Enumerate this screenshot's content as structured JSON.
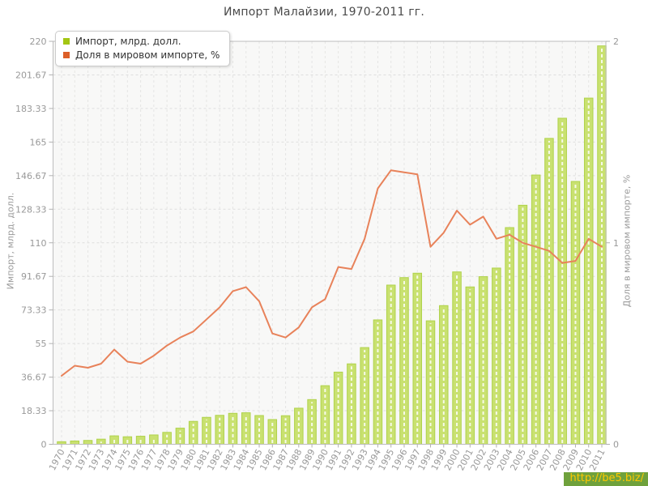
{
  "title": "Импорт Малайзии, 1970-2011 гг.",
  "watermark": "http://be5.biz/",
  "legend": {
    "items": [
      {
        "label": "Импорт, млрд. долл.",
        "color": "#a3c613"
      },
      {
        "label": "Доля в мировом импорте, %",
        "color": "#dc5f28"
      }
    ]
  },
  "colors": {
    "bar_fill": "#c9e170",
    "bar_edge": "#afd24a",
    "bar_stripe": "#ffffff",
    "line": "#e8825a",
    "plot_bg": "#f8f8f7",
    "grid": "#dedede",
    "axis": "#b0b0b0",
    "tick_text": "#999999",
    "title_text": "#4a4a4a",
    "watermark_bg": "#6fa13c",
    "watermark_text": "#ffc800"
  },
  "chart_data": {
    "type": "bar",
    "title": "Импорт Малайзии, 1970-2011 гг.",
    "grid": true,
    "legend_position": "top-left",
    "categories": [
      "1970",
      "1971",
      "1972",
      "1973",
      "1974",
      "1975",
      "1976",
      "1977",
      "1978",
      "1979",
      "1980",
      "1981",
      "1982",
      "1983",
      "1984",
      "1985",
      "1986",
      "1987",
      "1988",
      "1989",
      "1990",
      "1991",
      "1992",
      "1993",
      "1994",
      "1995",
      "1996",
      "1997",
      "1998",
      "1999",
      "2000",
      "2001",
      "2002",
      "2003",
      "2004",
      "2005",
      "2006",
      "2007",
      "2008",
      "2009",
      "2010",
      "2011"
    ],
    "series": [
      {
        "name": "Импорт, млрд. долл.",
        "type": "bar",
        "axis": "left",
        "color": "#c9e170",
        "edge_color": "#afd24a",
        "values": [
          1.4,
          1.8,
          2.1,
          2.8,
          4.6,
          4.1,
          4.4,
          5.1,
          6.5,
          8.8,
          12.5,
          14.7,
          15.8,
          16.9,
          17.2,
          15.7,
          13.5,
          15.6,
          19.7,
          24.4,
          32.0,
          39.4,
          43.9,
          52.8,
          67.9,
          86.9,
          91.0,
          93.4,
          67.4,
          75.7,
          94.1,
          85.9,
          91.5,
          96.2,
          118.3,
          130.5,
          147.0,
          167.0,
          178.0,
          143.5,
          189.0,
          217.5
        ]
      },
      {
        "name": "Доля в мировом импорте, %",
        "type": "line",
        "axis": "right",
        "color": "#e8825a",
        "values": [
          0.34,
          0.39,
          0.38,
          0.4,
          0.47,
          0.41,
          0.4,
          0.44,
          0.49,
          0.53,
          0.56,
          0.62,
          0.68,
          0.76,
          0.78,
          0.71,
          0.55,
          0.53,
          0.58,
          0.68,
          0.72,
          0.88,
          0.87,
          1.02,
          1.27,
          1.36,
          1.35,
          1.34,
          0.98,
          1.05,
          1.16,
          1.09,
          1.13,
          1.02,
          1.04,
          1.0,
          0.98,
          0.96,
          0.9,
          0.91,
          1.02,
          0.98
        ]
      }
    ],
    "left_axis": {
      "label": "Импорт, млрд. долл.",
      "min": 0,
      "max": 220,
      "ticks": [
        0,
        18.33,
        36.67,
        55,
        73.33,
        91.67,
        110,
        128.33,
        146.67,
        165,
        183.33,
        201.67,
        220
      ],
      "tick_labels": [
        "0",
        "18.33",
        "36.67",
        "55",
        "73.33",
        "91.67",
        "110",
        "128.33",
        "146.67",
        "165",
        "183.33",
        "201.67",
        "220"
      ]
    },
    "right_axis": {
      "label": "Доля в мировом импорте, %",
      "min": 0,
      "max": 2,
      "ticks": [
        0,
        1,
        2
      ],
      "tick_labels": [
        "0",
        "1",
        "2"
      ]
    }
  }
}
